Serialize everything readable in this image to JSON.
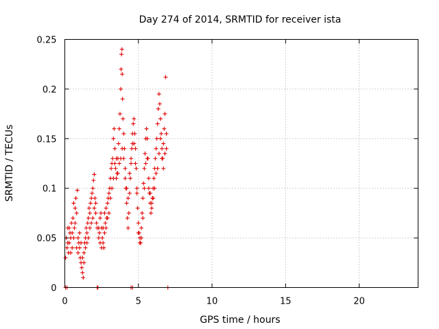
{
  "chart_data": {
    "type": "scatter",
    "title": "Day 274 of 2014, SRMTID for receiver ista",
    "xlabel": "GPS time / hours",
    "ylabel": "SRMTID / TECUs",
    "xlim": [
      0,
      24
    ],
    "ylim": [
      0,
      0.25
    ],
    "x_ticks": [
      0,
      5,
      10,
      15,
      20
    ],
    "x_tick_labels": [
      "0",
      "5",
      "10",
      "15",
      "20"
    ],
    "y_ticks": [
      0,
      0.05,
      0.1,
      0.15,
      0.2,
      0.25
    ],
    "y_tick_labels": [
      "0",
      "0.05",
      "0.1",
      "0.15",
      "0.2",
      "0.25"
    ],
    "grid": true,
    "marker": "+",
    "color": "#e00000",
    "series": [
      {
        "points": [
          [
            0.05,
            0.0
          ],
          [
            0.15,
            0.0
          ],
          [
            2.2,
            0.0
          ],
          [
            2.25,
            0.0
          ],
          [
            4.5,
            0.0
          ],
          [
            4.6,
            0.0
          ],
          [
            7.0,
            0.0
          ],
          [
            0.05,
            0.03
          ],
          [
            0.1,
            0.05
          ],
          [
            0.15,
            0.04
          ],
          [
            0.2,
            0.06
          ],
          [
            0.25,
            0.035
          ],
          [
            0.3,
            0.045
          ],
          [
            0.35,
            0.055
          ],
          [
            0.4,
            0.05
          ],
          [
            0.45,
            0.065
          ],
          [
            0.5,
            0.04
          ],
          [
            0.55,
            0.07
          ],
          [
            0.6,
            0.085
          ],
          [
            0.65,
            0.06
          ],
          [
            0.7,
            0.08
          ],
          [
            0.75,
            0.09
          ],
          [
            0.8,
            0.075
          ],
          [
            0.85,
            0.098
          ],
          [
            0.9,
            0.05
          ],
          [
            0.95,
            0.045
          ],
          [
            1.0,
            0.04
          ],
          [
            1.05,
            0.03
          ],
          [
            1.1,
            0.025
          ],
          [
            1.15,
            0.02
          ],
          [
            1.2,
            0.015
          ],
          [
            1.25,
            0.01
          ],
          [
            1.3,
            0.035
          ],
          [
            1.35,
            0.045
          ],
          [
            1.4,
            0.05
          ],
          [
            1.45,
            0.06
          ],
          [
            1.5,
            0.055
          ],
          [
            1.55,
            0.065
          ],
          [
            1.6,
            0.07
          ],
          [
            1.65,
            0.08
          ],
          [
            1.7,
            0.075
          ],
          [
            1.75,
            0.085
          ],
          [
            1.8,
            0.09
          ],
          [
            1.85,
            0.095
          ],
          [
            1.9,
            0.1
          ],
          [
            1.95,
            0.108
          ],
          [
            2.0,
            0.114
          ],
          [
            2.05,
            0.09
          ],
          [
            2.1,
            0.075
          ],
          [
            2.15,
            0.065
          ],
          [
            2.2,
            0.06
          ],
          [
            2.3,
            0.05
          ],
          [
            2.35,
            0.055
          ],
          [
            2.4,
            0.07
          ],
          [
            2.45,
            0.075
          ],
          [
            2.5,
            0.06
          ],
          [
            2.55,
            0.05
          ],
          [
            2.6,
            0.045
          ],
          [
            2.65,
            0.04
          ],
          [
            2.7,
            0.055
          ],
          [
            2.75,
            0.065
          ],
          [
            2.8,
            0.06
          ],
          [
            2.85,
            0.07
          ],
          [
            2.9,
            0.085
          ],
          [
            2.95,
            0.09
          ],
          [
            3.0,
            0.095
          ],
          [
            3.05,
            0.1
          ],
          [
            3.1,
            0.11
          ],
          [
            3.15,
            0.12
          ],
          [
            3.2,
            0.125
          ],
          [
            3.25,
            0.13
          ],
          [
            3.3,
            0.15
          ],
          [
            3.35,
            0.16
          ],
          [
            3.4,
            0.14
          ],
          [
            3.45,
            0.12
          ],
          [
            3.5,
            0.11
          ],
          [
            3.55,
            0.115
          ],
          [
            3.6,
            0.13
          ],
          [
            3.65,
            0.145
          ],
          [
            3.7,
            0.16
          ],
          [
            3.75,
            0.175
          ],
          [
            3.8,
            0.2
          ],
          [
            3.82,
            0.22
          ],
          [
            3.85,
            0.235
          ],
          [
            3.88,
            0.24
          ],
          [
            3.9,
            0.215
          ],
          [
            3.92,
            0.19
          ],
          [
            3.95,
            0.17
          ],
          [
            4.0,
            0.155
          ],
          [
            4.05,
            0.14
          ],
          [
            4.1,
            0.12
          ],
          [
            4.15,
            0.1
          ],
          [
            4.2,
            0.085
          ],
          [
            4.25,
            0.07
          ],
          [
            4.3,
            0.06
          ],
          [
            4.35,
            0.075
          ],
          [
            4.4,
            0.095
          ],
          [
            4.45,
            0.11
          ],
          [
            4.5,
            0.125
          ],
          [
            4.55,
            0.14
          ],
          [
            4.6,
            0.155
          ],
          [
            4.65,
            0.165
          ],
          [
            4.7,
            0.17
          ],
          [
            4.75,
            0.155
          ],
          [
            4.8,
            0.14
          ],
          [
            4.85,
            0.12
          ],
          [
            4.9,
            0.095
          ],
          [
            4.95,
            0.08
          ],
          [
            5.0,
            0.065
          ],
          [
            5.05,
            0.055
          ],
          [
            5.1,
            0.05
          ],
          [
            5.15,
            0.045
          ],
          [
            5.2,
            0.06
          ],
          [
            5.25,
            0.075
          ],
          [
            5.3,
            0.09
          ],
          [
            5.35,
            0.105
          ],
          [
            5.4,
            0.12
          ],
          [
            5.45,
            0.135
          ],
          [
            5.5,
            0.15
          ],
          [
            5.55,
            0.16
          ],
          [
            5.6,
            0.15
          ],
          [
            5.65,
            0.13
          ],
          [
            5.7,
            0.11
          ],
          [
            5.75,
            0.095
          ],
          [
            5.8,
            0.085
          ],
          [
            5.85,
            0.075
          ],
          [
            5.9,
            0.08
          ],
          [
            5.95,
            0.09
          ],
          [
            6.0,
            0.1
          ],
          [
            6.05,
            0.11
          ],
          [
            6.1,
            0.12
          ],
          [
            6.15,
            0.13
          ],
          [
            6.2,
            0.14
          ],
          [
            6.25,
            0.15
          ],
          [
            6.3,
            0.165
          ],
          [
            6.35,
            0.18
          ],
          [
            6.4,
            0.195
          ],
          [
            6.45,
            0.185
          ],
          [
            6.5,
            0.17
          ],
          [
            6.55,
            0.155
          ],
          [
            6.6,
            0.14
          ],
          [
            6.65,
            0.13
          ],
          [
            6.7,
            0.145
          ],
          [
            6.75,
            0.16
          ],
          [
            6.8,
            0.175
          ],
          [
            6.85,
            0.212
          ],
          [
            6.9,
            0.155
          ],
          [
            0.2,
            0.045
          ],
          [
            0.3,
            0.06
          ],
          [
            0.4,
            0.035
          ],
          [
            0.5,
            0.055
          ],
          [
            0.6,
            0.05
          ],
          [
            0.7,
            0.065
          ],
          [
            0.8,
            0.04
          ],
          [
            0.9,
            0.035
          ],
          [
            1.0,
            0.055
          ],
          [
            1.1,
            0.045
          ],
          [
            1.2,
            0.03
          ],
          [
            1.3,
            0.025
          ],
          [
            1.4,
            0.04
          ],
          [
            1.5,
            0.045
          ],
          [
            1.6,
            0.05
          ],
          [
            1.7,
            0.06
          ],
          [
            1.8,
            0.065
          ],
          [
            1.9,
            0.07
          ],
          [
            2.0,
            0.08
          ],
          [
            2.1,
            0.085
          ],
          [
            2.3,
            0.06
          ],
          [
            2.4,
            0.045
          ],
          [
            2.5,
            0.04
          ],
          [
            2.6,
            0.06
          ],
          [
            2.7,
            0.075
          ],
          [
            2.8,
            0.08
          ],
          [
            2.9,
            0.07
          ],
          [
            3.0,
            0.075
          ],
          [
            3.1,
            0.09
          ],
          [
            3.2,
            0.1
          ],
          [
            3.3,
            0.11
          ],
          [
            3.4,
            0.125
          ],
          [
            3.5,
            0.13
          ],
          [
            3.6,
            0.115
          ],
          [
            3.7,
            0.125
          ],
          [
            3.8,
            0.13
          ],
          [
            3.9,
            0.14
          ],
          [
            4.0,
            0.13
          ],
          [
            4.1,
            0.11
          ],
          [
            4.2,
            0.1
          ],
          [
            4.3,
            0.09
          ],
          [
            4.4,
            0.115
          ],
          [
            4.5,
            0.13
          ],
          [
            4.6,
            0.145
          ],
          [
            4.7,
            0.145
          ],
          [
            4.8,
            0.125
          ],
          [
            4.9,
            0.1
          ],
          [
            5.0,
            0.055
          ],
          [
            5.1,
            0.045
          ],
          [
            5.2,
            0.05
          ],
          [
            5.3,
            0.07
          ],
          [
            5.4,
            0.1
          ],
          [
            5.5,
            0.125
          ],
          [
            5.6,
            0.13
          ],
          [
            5.7,
            0.1
          ],
          [
            5.8,
            0.095
          ],
          [
            5.9,
            0.085
          ],
          [
            6.0,
            0.09
          ],
          [
            6.1,
            0.1
          ],
          [
            6.2,
            0.115
          ],
          [
            6.3,
            0.12
          ],
          [
            6.4,
            0.135
          ],
          [
            6.5,
            0.15
          ],
          [
            6.6,
            0.13
          ],
          [
            6.7,
            0.12
          ],
          [
            6.8,
            0.135
          ],
          [
            6.9,
            0.14
          ]
        ]
      }
    ]
  }
}
